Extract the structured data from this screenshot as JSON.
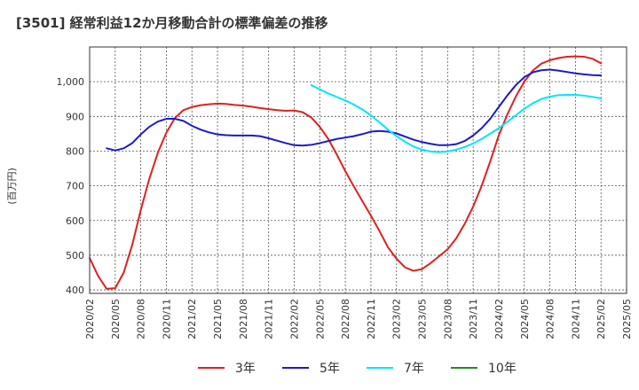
{
  "chart_data": {
    "type": "line",
    "title": "[3501]  経常利益12か月移動合計の標準偏差の推移",
    "ylabel": "(百万円)",
    "xlabel": "",
    "ylim": [
      390,
      1100
    ],
    "yticks": [
      400,
      500,
      600,
      700,
      800,
      900,
      1000
    ],
    "ytick_labels": [
      "400",
      "500",
      "600",
      "700",
      "800",
      "900",
      "1,000"
    ],
    "xticks": [
      "2020/02",
      "2020/05",
      "2020/08",
      "2020/11",
      "2021/02",
      "2021/05",
      "2021/08",
      "2021/11",
      "2022/02",
      "2022/05",
      "2022/08",
      "2022/11",
      "2023/02",
      "2023/05",
      "2023/08",
      "2023/11",
      "2024/02",
      "2024/05",
      "2024/08",
      "2024/11",
      "2025/02",
      "2025/05"
    ],
    "grid": true,
    "legend_position": "bottom",
    "series": [
      {
        "name": "3年",
        "color": "#e02020",
        "points": [
          [
            "2020/02",
            492
          ],
          [
            "2020/03",
            440
          ],
          [
            "2020/04",
            403
          ],
          [
            "2020/05",
            405
          ],
          [
            "2020/06",
            450
          ],
          [
            "2020/07",
            530
          ],
          [
            "2020/08",
            630
          ],
          [
            "2020/09",
            720
          ],
          [
            "2020/10",
            795
          ],
          [
            "2020/11",
            853
          ],
          [
            "2020/12",
            895
          ],
          [
            "2021/01",
            918
          ],
          [
            "2021/02",
            927
          ],
          [
            "2021/03",
            932
          ],
          [
            "2021/04",
            935
          ],
          [
            "2021/05",
            937
          ],
          [
            "2021/06",
            936
          ],
          [
            "2021/07",
            933
          ],
          [
            "2021/08",
            931
          ],
          [
            "2021/09",
            928
          ],
          [
            "2021/10",
            924
          ],
          [
            "2021/11",
            921
          ],
          [
            "2021/12",
            918
          ],
          [
            "2022/01",
            916
          ],
          [
            "2022/02",
            917
          ],
          [
            "2022/03",
            912
          ],
          [
            "2022/04",
            897
          ],
          [
            "2022/05",
            870
          ],
          [
            "2022/06",
            835
          ],
          [
            "2022/07",
            790
          ],
          [
            "2022/08",
            742
          ],
          [
            "2022/09",
            698
          ],
          [
            "2022/10",
            656
          ],
          [
            "2022/11",
            614
          ],
          [
            "2022/12",
            570
          ],
          [
            "2023/01",
            523
          ],
          [
            "2023/02",
            490
          ],
          [
            "2023/03",
            465
          ],
          [
            "2023/04",
            455
          ],
          [
            "2023/05",
            460
          ],
          [
            "2023/06",
            477
          ],
          [
            "2023/07",
            497
          ],
          [
            "2023/08",
            517
          ],
          [
            "2023/09",
            548
          ],
          [
            "2023/10",
            590
          ],
          [
            "2023/11",
            640
          ],
          [
            "2023/12",
            700
          ],
          [
            "2024/01",
            770
          ],
          [
            "2024/02",
            845
          ],
          [
            "2024/03",
            905
          ],
          [
            "2024/04",
            957
          ],
          [
            "2024/05",
            1000
          ],
          [
            "2024/06",
            1032
          ],
          [
            "2024/07",
            1052
          ],
          [
            "2024/08",
            1062
          ],
          [
            "2024/09",
            1068
          ],
          [
            "2024/10",
            1072
          ],
          [
            "2024/11",
            1073
          ],
          [
            "2024/12",
            1072
          ],
          [
            "2025/01",
            1066
          ],
          [
            "2025/02",
            1053
          ]
        ]
      },
      {
        "name": "5年",
        "color": "#1a1acc",
        "points": [
          [
            "2020/04",
            808
          ],
          [
            "2020/05",
            802
          ],
          [
            "2020/06",
            808
          ],
          [
            "2020/07",
            823
          ],
          [
            "2020/08",
            848
          ],
          [
            "2020/09",
            870
          ],
          [
            "2020/10",
            885
          ],
          [
            "2020/11",
            893
          ],
          [
            "2020/12",
            893
          ],
          [
            "2021/01",
            887
          ],
          [
            "2021/02",
            873
          ],
          [
            "2021/03",
            862
          ],
          [
            "2021/04",
            854
          ],
          [
            "2021/05",
            848
          ],
          [
            "2021/06",
            846
          ],
          [
            "2021/07",
            845
          ],
          [
            "2021/08",
            845
          ],
          [
            "2021/09",
            845
          ],
          [
            "2021/10",
            843
          ],
          [
            "2021/11",
            837
          ],
          [
            "2021/12",
            830
          ],
          [
            "2022/01",
            823
          ],
          [
            "2022/02",
            817
          ],
          [
            "2022/03",
            816
          ],
          [
            "2022/04",
            818
          ],
          [
            "2022/05",
            823
          ],
          [
            "2022/06",
            829
          ],
          [
            "2022/07",
            835
          ],
          [
            "2022/08",
            839
          ],
          [
            "2022/09",
            843
          ],
          [
            "2022/10",
            849
          ],
          [
            "2022/11",
            856
          ],
          [
            "2022/12",
            858
          ],
          [
            "2023/01",
            856
          ],
          [
            "2023/02",
            851
          ],
          [
            "2023/03",
            842
          ],
          [
            "2023/04",
            833
          ],
          [
            "2023/05",
            826
          ],
          [
            "2023/06",
            821
          ],
          [
            "2023/07",
            817
          ],
          [
            "2023/08",
            817
          ],
          [
            "2023/09",
            820
          ],
          [
            "2023/10",
            829
          ],
          [
            "2023/11",
            845
          ],
          [
            "2023/12",
            866
          ],
          [
            "2024/01",
            893
          ],
          [
            "2024/02",
            927
          ],
          [
            "2024/03",
            960
          ],
          [
            "2024/04",
            990
          ],
          [
            "2024/05",
            1013
          ],
          [
            "2024/06",
            1027
          ],
          [
            "2024/07",
            1033
          ],
          [
            "2024/08",
            1035
          ],
          [
            "2024/09",
            1032
          ],
          [
            "2024/10",
            1028
          ],
          [
            "2024/11",
            1024
          ],
          [
            "2024/12",
            1021
          ],
          [
            "2025/01",
            1019
          ],
          [
            "2025/02",
            1018
          ]
        ]
      },
      {
        "name": "7年",
        "color": "#00e5ff",
        "points": [
          [
            "2022/04",
            990
          ],
          [
            "2022/05",
            978
          ],
          [
            "2022/06",
            966
          ],
          [
            "2022/07",
            956
          ],
          [
            "2022/08",
            946
          ],
          [
            "2022/09",
            934
          ],
          [
            "2022/10",
            920
          ],
          [
            "2022/11",
            903
          ],
          [
            "2022/12",
            883
          ],
          [
            "2023/01",
            862
          ],
          [
            "2023/02",
            843
          ],
          [
            "2023/03",
            827
          ],
          [
            "2023/04",
            813
          ],
          [
            "2023/05",
            804
          ],
          [
            "2023/06",
            799
          ],
          [
            "2023/07",
            797
          ],
          [
            "2023/08",
            799
          ],
          [
            "2023/09",
            804
          ],
          [
            "2023/10",
            812
          ],
          [
            "2023/11",
            822
          ],
          [
            "2023/12",
            835
          ],
          [
            "2024/01",
            850
          ],
          [
            "2024/02",
            866
          ],
          [
            "2024/03",
            884
          ],
          [
            "2024/04",
            903
          ],
          [
            "2024/05",
            922
          ],
          [
            "2024/06",
            938
          ],
          [
            "2024/07",
            950
          ],
          [
            "2024/08",
            957
          ],
          [
            "2024/09",
            961
          ],
          [
            "2024/10",
            962
          ],
          [
            "2024/11",
            962
          ],
          [
            "2024/12",
            960
          ],
          [
            "2025/01",
            956
          ],
          [
            "2025/02",
            952
          ]
        ]
      },
      {
        "name": "10年",
        "color": "#228b22",
        "points": []
      }
    ]
  }
}
